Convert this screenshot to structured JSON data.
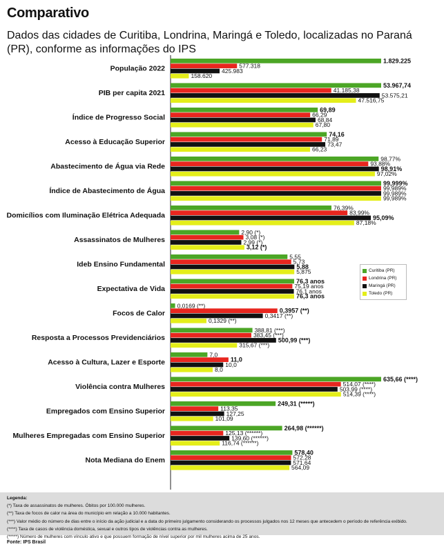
{
  "title": "Comparativo",
  "subtitle": "Dados das cidades de Curitiba, Londrina, Maringá e Toledo, localizadas no Paraná (PR), conforme as informações do IPS",
  "legend_title": "Legenda:",
  "notes": [
    "(*) Taxa de assassinatos de mulheres. Óbitos por 100.000 mulheres.",
    "(**) Taxa de focos de calor na área do município em relação a 10.000 habitantes.",
    "(***) Valor médio do número de dias entre o início da ação judicial e a data do primeiro julgamento considerando os processos julgados nos 12 meses que antecedem o período de referência exibido.",
    "(****) Taxa de casos de violência doméstica, sexual e outros tipos de violências contra as mulheres.",
    "(*****) Número de mulheres com vínculo ativo e que possuem formação de nível superior por mil mulheres acima de 25 anos."
  ],
  "source": "Fonte: IPS Brasil",
  "chart_data": {
    "type": "bar",
    "orientation": "horizontal",
    "colors": [
      "#4ca626",
      "#e8261f",
      "#111111",
      "#e4ee1a"
    ],
    "series_names": [
      "Curitiba (PR)",
      "Londrina (PR)",
      "Maringá (PR)",
      "Toledo (PR)"
    ],
    "legend_position": "right",
    "categories": [
      {
        "label": "População 2022",
        "scale_max": 1829225,
        "values": [
          1829225,
          577318,
          425983,
          158620
        ],
        "labels": [
          "1.829.225",
          "577.318",
          "425.983",
          "158.620"
        ]
      },
      {
        "label": "PIB per capita 2021",
        "scale_max": 53967.74,
        "values": [
          53967.74,
          41185.38,
          53575.21,
          47516.75
        ],
        "labels": [
          "53.967,74",
          "41.185,38",
          "53.575,21",
          "47.516,75"
        ]
      },
      {
        "label": "Índice de Progresso Social",
        "scale_max": 100,
        "values": [
          69.89,
          66.29,
          68.84,
          67.8
        ],
        "labels": [
          "69,89",
          "66,29",
          "68,84",
          "67,80"
        ]
      },
      {
        "label": "Acesso à Educação Superior",
        "scale_max": 100,
        "values": [
          74.16,
          71.89,
          73.47,
          66.23
        ],
        "labels": [
          "74,16",
          "71,89",
          "73,47",
          "66,23"
        ]
      },
      {
        "label": "Abastecimento de Água via Rede",
        "scale_max": 100,
        "values": [
          98.77,
          93.88,
          98.91,
          97.02
        ],
        "labels": [
          "98,77%",
          "93,88%",
          "98,91%",
          "97,02%"
        ]
      },
      {
        "label": "Índice de Abastecimento de Água",
        "scale_max": 100,
        "values": [
          99.999,
          99.989,
          99.989,
          99.989
        ],
        "labels": [
          "99,999%",
          "99,989%",
          "99,989%",
          "99,989%"
        ]
      },
      {
        "label": "Domicílios com Iluminação Elétrica Adequada",
        "scale_max": 100,
        "values": [
          76.39,
          83.99,
          95.09,
          87.18
        ],
        "labels": [
          "76,39%",
          "83,99%",
          "95,09%",
          "87,18%"
        ]
      },
      {
        "label": "Assassinatos de Mulheres",
        "scale_max": 8.9,
        "values": [
          2.9,
          3.08,
          2.99,
          3.12
        ],
        "labels": [
          "2,90 (*)",
          "3,08 (*)",
          "2,99 (*)",
          "3,12 (*)"
        ]
      },
      {
        "label": "Ideb Ensino Fundamental",
        "scale_max": 10,
        "values": [
          5.55,
          5.73,
          5.88,
          5.875
        ],
        "labels": [
          "5,55",
          "5,73",
          "5,88",
          "5,875"
        ]
      },
      {
        "label": "Expectativa de Vida",
        "scale_max": 130,
        "values": [
          76.3,
          75.19,
          76.1,
          76.3
        ],
        "labels": [
          "76,3 anos",
          "75,19 anos",
          "76,1 anos",
          "76,3 anos"
        ]
      },
      {
        "label": "Focos de Calor",
        "scale_max": 0.78,
        "values": [
          0.0169,
          0.3957,
          0.3417,
          0.1329
        ],
        "labels": [
          "0,0169 (**)",
          "0,3957 (**)",
          "0,3417 (**)",
          "0,1329 (**)"
        ]
      },
      {
        "label": "Resposta a Processos Previdenciários",
        "scale_max": 1000,
        "values": [
          388.81,
          383.45,
          500.99,
          315.67
        ],
        "labels": [
          "388,81 (***)",
          "383,45 (***)",
          "500,99 (***)",
          "315,67 (***)"
        ]
      },
      {
        "label": "Acesso à Cultura, Lazer e Esporte",
        "scale_max": 40,
        "values": [
          7.0,
          11.0,
          10.0,
          8.0
        ],
        "labels": [
          "7,0",
          "11,0",
          "10,0",
          "8,0"
        ]
      },
      {
        "label": "Violência contra Mulheres",
        "scale_max": 635.66,
        "values": [
          635.66,
          514.07,
          503.99,
          514.39
        ],
        "labels": [
          "635,66 (****)",
          "514,07 (****)",
          "503,99 (****)",
          "514,39 (****)"
        ]
      },
      {
        "label": "Empregados com Ensino Superior",
        "scale_max": 500,
        "values": [
          249.31,
          113.35,
          127.25,
          101.09
        ],
        "labels": [
          "249,31 (*****)",
          "113,35",
          "127,25",
          "101,09"
        ]
      },
      {
        "label": "Mulheres Empregadas com Ensino Superior",
        "scale_max": 500,
        "values": [
          264.98,
          125.13,
          139.6,
          116.74
        ],
        "labels": [
          "264,98 (******)",
          "125,13 (******)",
          "139,60 (******)",
          "116,74 (******)"
        ]
      },
      {
        "label": "Nota Mediana do Enem",
        "scale_max": 1000,
        "values": [
          578.4,
          572.28,
          571.64,
          564.09
        ],
        "labels": [
          "578,40",
          "572,28",
          "571,64",
          "564,09"
        ]
      }
    ]
  }
}
